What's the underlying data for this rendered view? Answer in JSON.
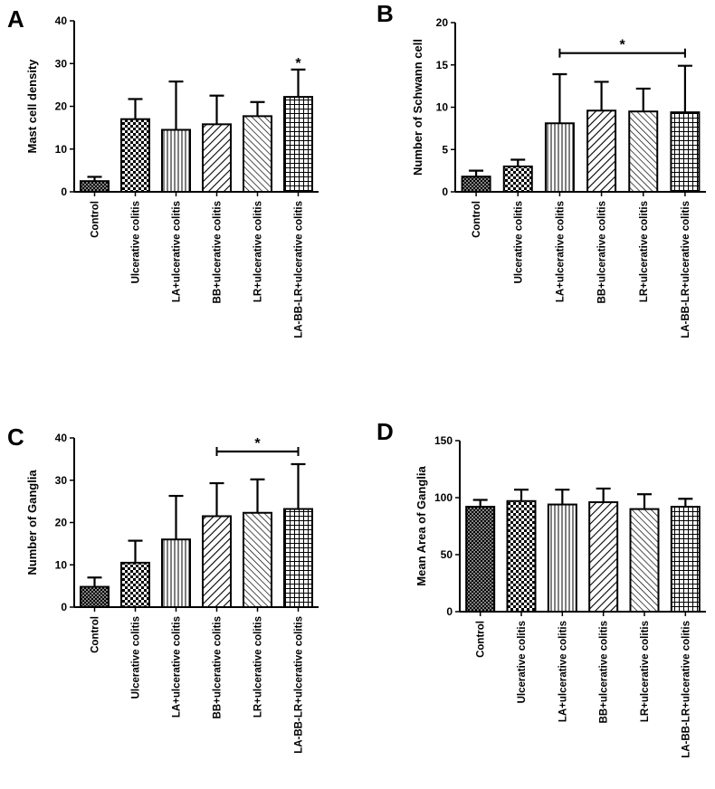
{
  "chart_data": [
    {
      "panel": "A",
      "type": "bar",
      "ylabel": "Mast cell density",
      "xlabel": "",
      "ylim": [
        0,
        40
      ],
      "yticks": [
        0,
        10,
        20,
        30,
        40
      ],
      "categories": [
        "Control",
        "Ulcerative colitis",
        "LA+ulcerative colitis",
        "BB+ulcerative colitis",
        "LR+ulcerative colitis",
        "LA-BB-LR+ulcerative colitis"
      ],
      "values": [
        2.5,
        17,
        14.5,
        15.8,
        17.7,
        22.2
      ],
      "errors": [
        1.0,
        4.7,
        11.3,
        6.7,
        3.3,
        6.4
      ],
      "patterns": [
        "cross",
        "checker",
        "vertical",
        "diag-left",
        "diag-right",
        "grid"
      ],
      "significance": [
        {
          "label": "*",
          "from": 5,
          "to": 5
        }
      ]
    },
    {
      "panel": "B",
      "type": "bar",
      "ylabel": "Number of Schwann cell",
      "xlabel": "",
      "ylim": [
        0,
        20
      ],
      "yticks": [
        0,
        5,
        10,
        15,
        20
      ],
      "categories": [
        "Control",
        "Ulcerative colitis",
        "LA+ulcerative colitis",
        "BB+ulcerative colitis",
        "LR+ulcerative colitis",
        "LA-BB-LR+ulcerative colitis"
      ],
      "values": [
        1.8,
        3.0,
        8.1,
        9.6,
        9.5,
        9.4
      ],
      "errors": [
        0.7,
        0.8,
        5.8,
        3.4,
        2.7,
        5.5
      ],
      "patterns": [
        "cross",
        "checker",
        "vertical",
        "diag-left",
        "diag-right",
        "grid"
      ],
      "significance": [
        {
          "label": "*",
          "from": 2,
          "to": 5
        }
      ]
    },
    {
      "panel": "C",
      "type": "bar",
      "ylabel": "Number of Ganglia",
      "xlabel": "",
      "ylim": [
        0,
        40
      ],
      "yticks": [
        0,
        10,
        20,
        30,
        40
      ],
      "categories": [
        "Control",
        "Ulcerative colitis",
        "LA+ulcerative colitis",
        "BB+ulcerative colitis",
        "LR+ulcerative colitis",
        "LA-BB-LR+ulcerative colitis"
      ],
      "values": [
        4.8,
        10.5,
        16.0,
        21.5,
        22.3,
        23.2
      ],
      "errors": [
        2.2,
        5.2,
        10.3,
        7.8,
        7.9,
        10.6
      ],
      "patterns": [
        "cross",
        "checker",
        "vertical",
        "diag-left",
        "diag-right",
        "grid"
      ],
      "significance": [
        {
          "label": "*",
          "from": 3,
          "to": 5
        }
      ]
    },
    {
      "panel": "D",
      "type": "bar",
      "ylabel": "Mean Area of Ganglia",
      "xlabel": "",
      "ylim": [
        0,
        150
      ],
      "yticks": [
        0,
        50,
        100,
        150
      ],
      "categories": [
        "Control",
        "Ulcerative colitis",
        "LA+ulcerative colitis",
        "BB+ulcerative colitis",
        "LR+ulcerative colitis",
        "LA-BB-LR+ulcerative colitis"
      ],
      "values": [
        92,
        97,
        94,
        96,
        90,
        92
      ],
      "errors": [
        6,
        10,
        13,
        12,
        13,
        7
      ],
      "patterns": [
        "cross",
        "checker",
        "vertical",
        "diag-left",
        "diag-right",
        "grid"
      ],
      "significance": []
    }
  ]
}
